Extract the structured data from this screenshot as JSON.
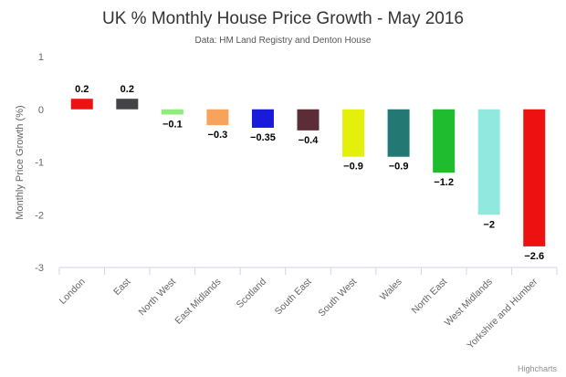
{
  "chart_data": {
    "type": "bar",
    "title": "UK % Monthly House Price Growth - May 2016",
    "subtitle": "Data: HM Land Registry and Denton House",
    "ylabel": "Monthly Price Growth (%)",
    "xlabel": "",
    "ylim": [
      -3,
      1
    ],
    "yticks": [
      1,
      0,
      -1,
      -2,
      -3
    ],
    "grid": false,
    "legend": "none",
    "categories": [
      "London",
      "East",
      "North West",
      "East Midlands",
      "Scotland",
      "South East",
      "South West",
      "Wales",
      "North East",
      "West Midlands",
      "Yorkshire and Humber"
    ],
    "values": [
      0.2,
      0.2,
      -0.1,
      -0.3,
      -0.35,
      -0.4,
      -0.9,
      -0.9,
      -1.2,
      -2,
      -2.6
    ],
    "colors": [
      "#ee1111",
      "#434348",
      "#90ed7d",
      "#f7a35c",
      "#1a1adb",
      "#5c2d37",
      "#e4f00a",
      "#237873",
      "#1fbc2f",
      "#90e8de",
      "#ee1111"
    ]
  },
  "credits": "Highcharts"
}
